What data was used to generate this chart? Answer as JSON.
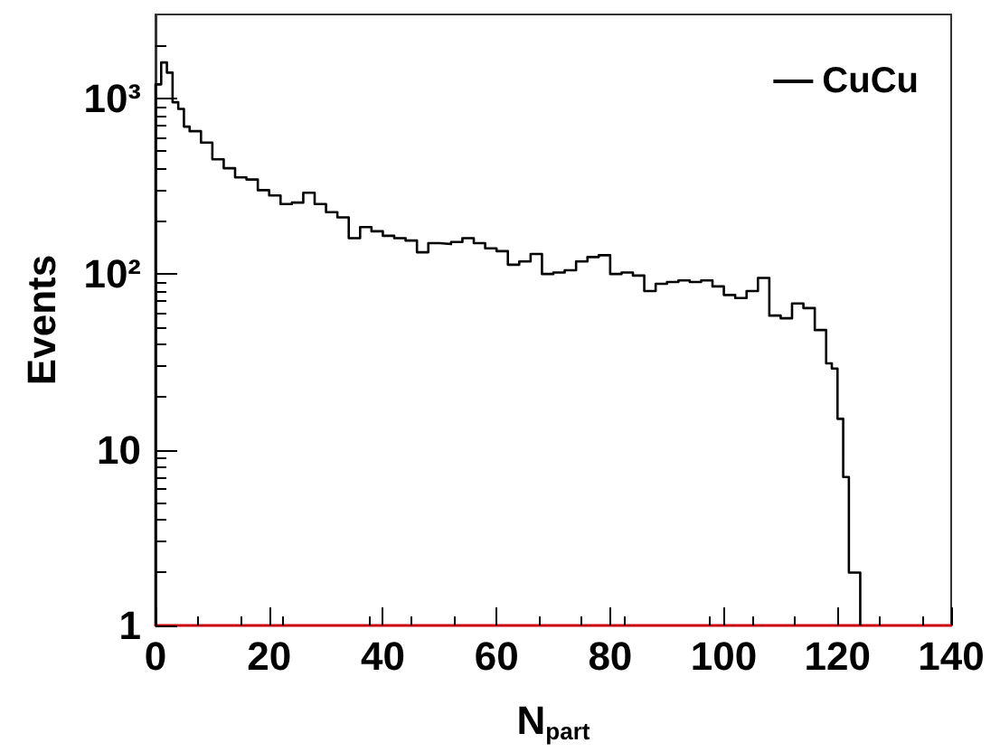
{
  "chart_data": {
    "type": "histogram",
    "xlabel": "N$_{part}$",
    "ylabel": "Events",
    "bins": [
      0,
      1,
      2,
      3,
      4,
      5,
      6,
      8,
      10,
      12,
      14,
      16,
      18,
      20,
      22,
      24,
      26,
      28,
      30,
      32,
      34,
      36,
      38,
      40,
      42,
      44,
      46,
      48,
      50,
      52,
      54,
      56,
      58,
      60,
      62,
      64,
      66,
      68,
      70,
      72,
      74,
      76,
      78,
      80,
      82,
      84,
      86,
      88,
      90,
      92,
      94,
      96,
      98,
      100,
      102,
      104,
      106,
      108,
      110,
      112,
      114,
      116,
      118,
      119,
      120,
      121,
      122,
      124
    ],
    "series": [
      {
        "name": "CuCu",
        "color": "#000000",
        "values": [
          1200,
          1600,
          1400,
          950,
          870,
          690,
          650,
          560,
          450,
          400,
          355,
          345,
          300,
          280,
          250,
          255,
          290,
          250,
          225,
          210,
          160,
          185,
          175,
          165,
          160,
          155,
          133,
          150,
          148,
          152,
          160,
          150,
          140,
          135,
          113,
          118,
          130,
          100,
          102,
          105,
          118,
          125,
          128,
          100,
          102,
          98,
          80,
          88,
          90,
          92,
          90,
          92,
          85,
          76,
          73,
          80,
          95,
          58,
          56,
          68,
          64,
          48,
          31,
          29,
          15,
          7,
          2
        ]
      }
    ],
    "xlim": [
      0,
      140
    ],
    "xticks": [
      0,
      20,
      40,
      60,
      80,
      100,
      120,
      140
    ],
    "ylim": [
      1,
      3000
    ],
    "yticks": [
      1,
      10,
      {
        "value": 100,
        "label": "10²"
      },
      {
        "value": 1000,
        "label": "10³"
      }
    ],
    "log": "y",
    "grid": false,
    "legend": "top right"
  }
}
